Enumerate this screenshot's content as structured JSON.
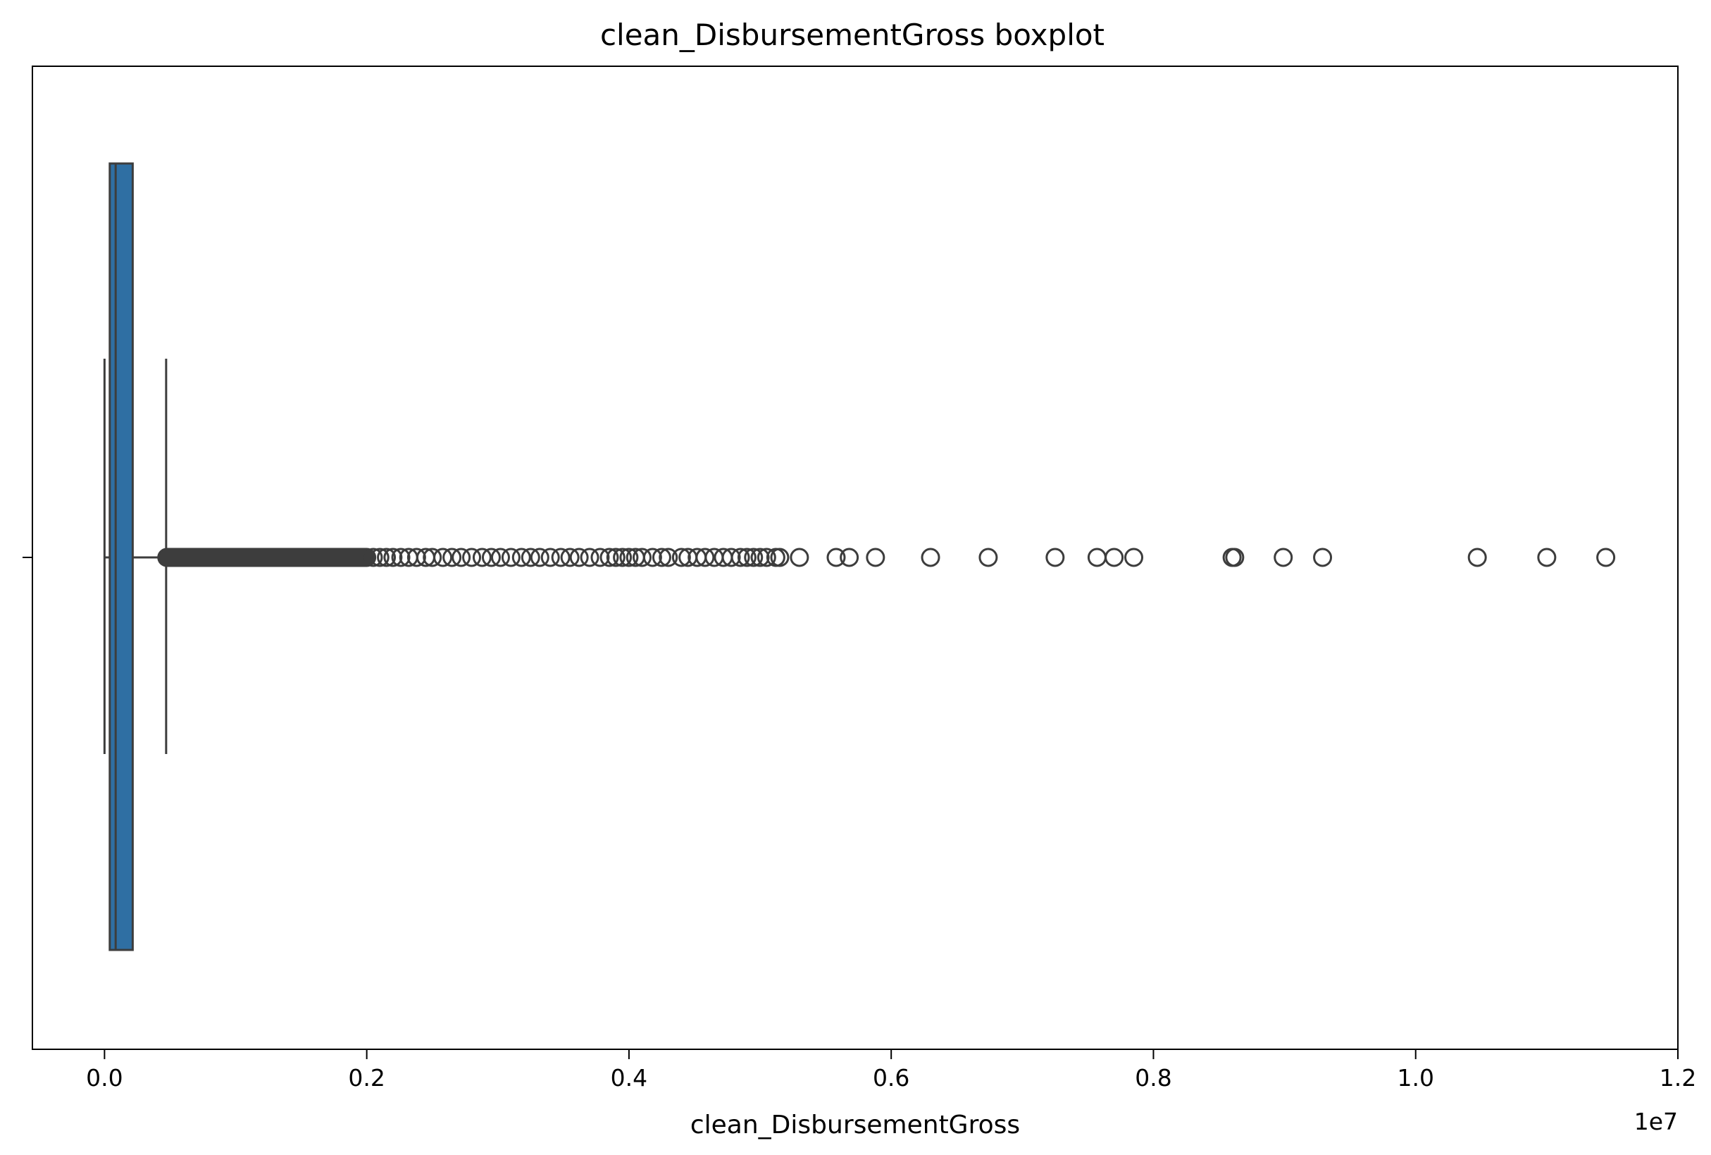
{
  "chart_data": {
    "type": "boxplot",
    "orientation": "horizontal",
    "title": "clean_DisbursementGross boxplot",
    "xlabel": "clean_DisbursementGross",
    "ylabel": "",
    "x_offset_label": "1e7",
    "x_multiplier": 10000000,
    "xlim": [
      -0.055,
      1.2
    ],
    "x_ticks": [
      0.0,
      0.2,
      0.4,
      0.6,
      0.8,
      1.0,
      1.2
    ],
    "x_tick_labels": [
      "0.0",
      "0.2",
      "0.4",
      "0.6",
      "0.8",
      "1.0",
      "1.2"
    ],
    "grid": false,
    "legend": false,
    "colors": {
      "box_fill": "#2f6fa3",
      "line": "#3d3d3d",
      "outlier": "#3d3d3d"
    },
    "box": {
      "whisker_low": 0.0,
      "q1": 0.004,
      "median": 0.0085,
      "q3": 0.0215,
      "whisker_high": 0.047
    },
    "outliers_dense_range": [
      0.0475,
      0.2
    ],
    "outliers": [
      0.205,
      0.21,
      0.215,
      0.22,
      0.226,
      0.232,
      0.238,
      0.245,
      0.25,
      0.258,
      0.265,
      0.272,
      0.28,
      0.288,
      0.295,
      0.302,
      0.31,
      0.318,
      0.325,
      0.332,
      0.34,
      0.348,
      0.355,
      0.362,
      0.37,
      0.378,
      0.385,
      0.39,
      0.395,
      0.4,
      0.405,
      0.41,
      0.418,
      0.425,
      0.43,
      0.44,
      0.445,
      0.452,
      0.458,
      0.465,
      0.472,
      0.478,
      0.485,
      0.49,
      0.495,
      0.5,
      0.505,
      0.512,
      0.515,
      0.53,
      0.558,
      0.568,
      0.588,
      0.63,
      0.674,
      0.725,
      0.757,
      0.77,
      0.785,
      0.86,
      0.862,
      0.899,
      0.929,
      1.047,
      1.1,
      1.145
    ]
  }
}
